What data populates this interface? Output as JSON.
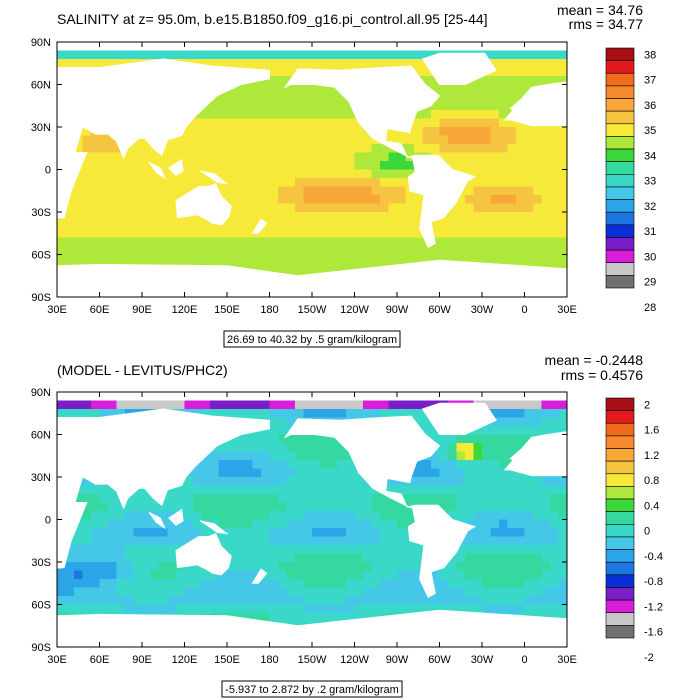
{
  "chart_data": [
    {
      "type": "heatmap",
      "title": "SALINITY at z=  95.0m, b.e15.B1850.f09_g16.pi_control.all.95 [25-44]",
      "mean_label": "mean = 34.76",
      "rms_label": "rms = 34.77",
      "mean": 34.76,
      "rms": 34.77,
      "x_ticks": [
        "30E",
        "60E",
        "90E",
        "120E",
        "150E",
        "180",
        "150W",
        "120W",
        "90W",
        "60W",
        "30W",
        "0",
        "30E"
      ],
      "y_ticks": [
        "90N",
        "60N",
        "30N",
        "0",
        "30S",
        "60S",
        "90S"
      ],
      "xlim_deg_east": [
        30,
        390
      ],
      "ylim_deg_north": [
        -90,
        90
      ],
      "range_label": "26.69 to 40.32 by .5 gram/kilogram",
      "colorbar": {
        "labels": [
          "38",
          "37",
          "36",
          "35",
          "34",
          "33",
          "32",
          "31",
          "30",
          "29",
          "28"
        ],
        "colors_top_to_bottom": [
          "#a50f15",
          "#e31a1c",
          "#f06b1a",
          "#f48a2a",
          "#f7a637",
          "#f5c542",
          "#f6e93a",
          "#aee83a",
          "#3ad83a",
          "#35d9a0",
          "#3ad8c8",
          "#45c8e8",
          "#2aa6e8",
          "#1e76e0",
          "#0a2ed8",
          "#7a1ec8",
          "#d81ed8",
          "#c8c8c8",
          "#707070"
        ]
      }
    },
    {
      "type": "heatmap",
      "title": "(MODEL - LEVITUS/PHC2)",
      "mean_label": "mean = -0.2448",
      "rms_label": "rms = 0.4576",
      "mean": -0.2448,
      "rms": 0.4576,
      "x_ticks": [
        "30E",
        "60E",
        "90E",
        "120E",
        "150E",
        "180",
        "150W",
        "120W",
        "90W",
        "60W",
        "30W",
        "0",
        "30E"
      ],
      "y_ticks": [
        "90N",
        "60N",
        "30N",
        "0",
        "30S",
        "60S",
        "90S"
      ],
      "xlim_deg_east": [
        30,
        390
      ],
      "ylim_deg_north": [
        -90,
        90
      ],
      "range_label": "-5.937 to 2.872 by .2 gram/kilogram",
      "colorbar": {
        "labels": [
          "2",
          "1.6",
          "1.2",
          "0.8",
          "0.4",
          "0",
          "-0.4",
          "-0.8",
          "-1.2",
          "-1.6",
          "-2"
        ],
        "colors_top_to_bottom": [
          "#a50f15",
          "#e31a1c",
          "#f06b1a",
          "#f48a2a",
          "#f7a637",
          "#f5c542",
          "#f6e93a",
          "#aee83a",
          "#3ad83a",
          "#35d9a0",
          "#3ad8c8",
          "#45c8e8",
          "#2aa6e8",
          "#1e76e0",
          "#0a2ed8",
          "#7a1ec8",
          "#d81ed8",
          "#c8c8c8",
          "#707070"
        ]
      }
    }
  ]
}
